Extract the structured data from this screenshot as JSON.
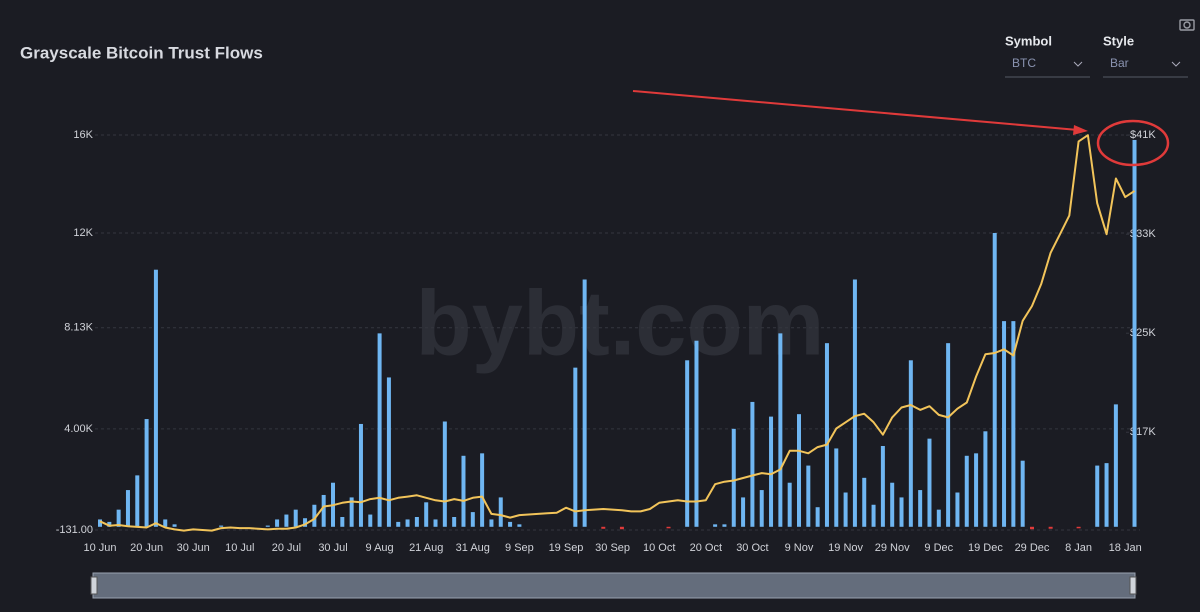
{
  "header": {
    "title": "Grayscale Bitcoin Trust Flows"
  },
  "controls": [
    {
      "label": "Symbol",
      "value": "BTC"
    },
    {
      "label": "Style",
      "value": "Bar"
    }
  ],
  "watermark": "bybt.com",
  "chart_data": {
    "type": "bar",
    "categories": [
      "10 Jun",
      null,
      null,
      null,
      null,
      "20 Jun",
      null,
      null,
      null,
      null,
      "30 Jun",
      null,
      null,
      null,
      null,
      "10 Jul",
      null,
      null,
      null,
      null,
      "20 Jul",
      null,
      null,
      null,
      null,
      "30 Jul",
      null,
      null,
      null,
      null,
      "9 Aug",
      null,
      null,
      null,
      null,
      "21 Aug",
      null,
      null,
      null,
      null,
      "31 Aug",
      null,
      null,
      null,
      null,
      "9 Sep",
      null,
      null,
      null,
      null,
      "19 Sep",
      null,
      null,
      null,
      null,
      "30 Sep",
      null,
      null,
      null,
      null,
      "10 Oct",
      null,
      null,
      null,
      null,
      "20 Oct",
      null,
      null,
      null,
      null,
      "30 Oct",
      null,
      null,
      null,
      null,
      "9 Nov",
      null,
      null,
      null,
      null,
      "19 Nov",
      null,
      null,
      null,
      null,
      "29 Nov",
      null,
      null,
      null,
      null,
      "9 Dec",
      null,
      null,
      null,
      null,
      "19 Dec",
      null,
      null,
      null,
      null,
      "29 Dec",
      null,
      null,
      null,
      null,
      "8 Jan",
      null,
      null,
      null,
      null,
      "18 Jan",
      null
    ],
    "series": [
      {
        "type": "bar",
        "color": "#6fb6f2",
        "negative_color": "#e03a3a",
        "values": [
          300,
          200,
          700,
          1500,
          2100,
          4400,
          10500,
          300,
          100,
          0,
          0,
          0,
          0,
          50,
          0,
          0,
          0,
          0,
          50,
          300,
          500,
          700,
          350,
          900,
          1300,
          1800,
          400,
          1200,
          4200,
          500,
          7900,
          6100,
          200,
          300,
          400,
          1000,
          300,
          4300,
          400,
          2900,
          600,
          3000,
          300,
          1200,
          200,
          100,
          0,
          0,
          0,
          0,
          0,
          6500,
          10100,
          0,
          -80,
          0,
          -100,
          0,
          0,
          0,
          0,
          -60,
          0,
          6800,
          7600,
          0,
          100,
          100,
          4000,
          1200,
          5100,
          1500,
          4500,
          7900,
          1800,
          4600,
          2500,
          800,
          7500,
          3200,
          1400,
          10100,
          2000,
          900,
          3300,
          1800,
          1200,
          6800,
          1500,
          3600,
          700,
          7500,
          1400,
          2900,
          3000,
          3900,
          12000,
          8400,
          8400,
          2700,
          -100,
          0,
          -80,
          0,
          0,
          -50,
          0,
          2500,
          2600,
          5000,
          0,
          15800
        ]
      },
      {
        "type": "line",
        "color": "#f2c45a",
        "axis": "y2",
        "values": [
          9800,
          9450,
          9500,
          9400,
          9350,
          9300,
          9650,
          9300,
          9150,
          9050,
          9150,
          9100,
          9050,
          9250,
          9300,
          9250,
          9250,
          9200,
          9150,
          9200,
          9200,
          9300,
          9550,
          10000,
          11000,
          11100,
          11300,
          11400,
          11350,
          11600,
          11700,
          11500,
          11700,
          11800,
          11900,
          11700,
          11500,
          11400,
          11600,
          11450,
          11700,
          11800,
          10400,
          10300,
          10100,
          10300,
          10350,
          10400,
          10450,
          10500,
          10900,
          10600,
          10700,
          10750,
          10800,
          10750,
          10700,
          10600,
          10600,
          10800,
          11300,
          11400,
          11500,
          11400,
          11400,
          11500,
          12800,
          13000,
          13100,
          13300,
          13500,
          13700,
          13600,
          14000,
          15500,
          15500,
          15300,
          15800,
          16000,
          17300,
          17800,
          18300,
          18500,
          17800,
          16800,
          18200,
          19000,
          19200,
          18800,
          19100,
          18400,
          18200,
          18900,
          19400,
          21500,
          23300,
          23400,
          23700,
          23200,
          26000,
          27200,
          29000,
          31500,
          33000,
          34500,
          40500,
          41000,
          35500,
          33000,
          37500,
          36000,
          36500
        ]
      }
    ],
    "ylim": [
      -131,
      16500
    ],
    "yticks": [
      {
        "value": -131,
        "label": "-131.00"
      },
      {
        "value": 4000,
        "label": "4.00K"
      },
      {
        "value": 8130,
        "label": "8.13K"
      },
      {
        "value": 12000,
        "label": "12K"
      },
      {
        "value": 16000,
        "label": "16K"
      }
    ],
    "y2lim": [
      9100,
      42000
    ],
    "y2ticks": [
      {
        "value": 17000,
        "label": "$17K"
      },
      {
        "value": 25000,
        "label": "$25K"
      },
      {
        "value": 33000,
        "label": "$33K"
      },
      {
        "value": 41000,
        "label": "$41K"
      }
    ],
    "grid": true
  }
}
